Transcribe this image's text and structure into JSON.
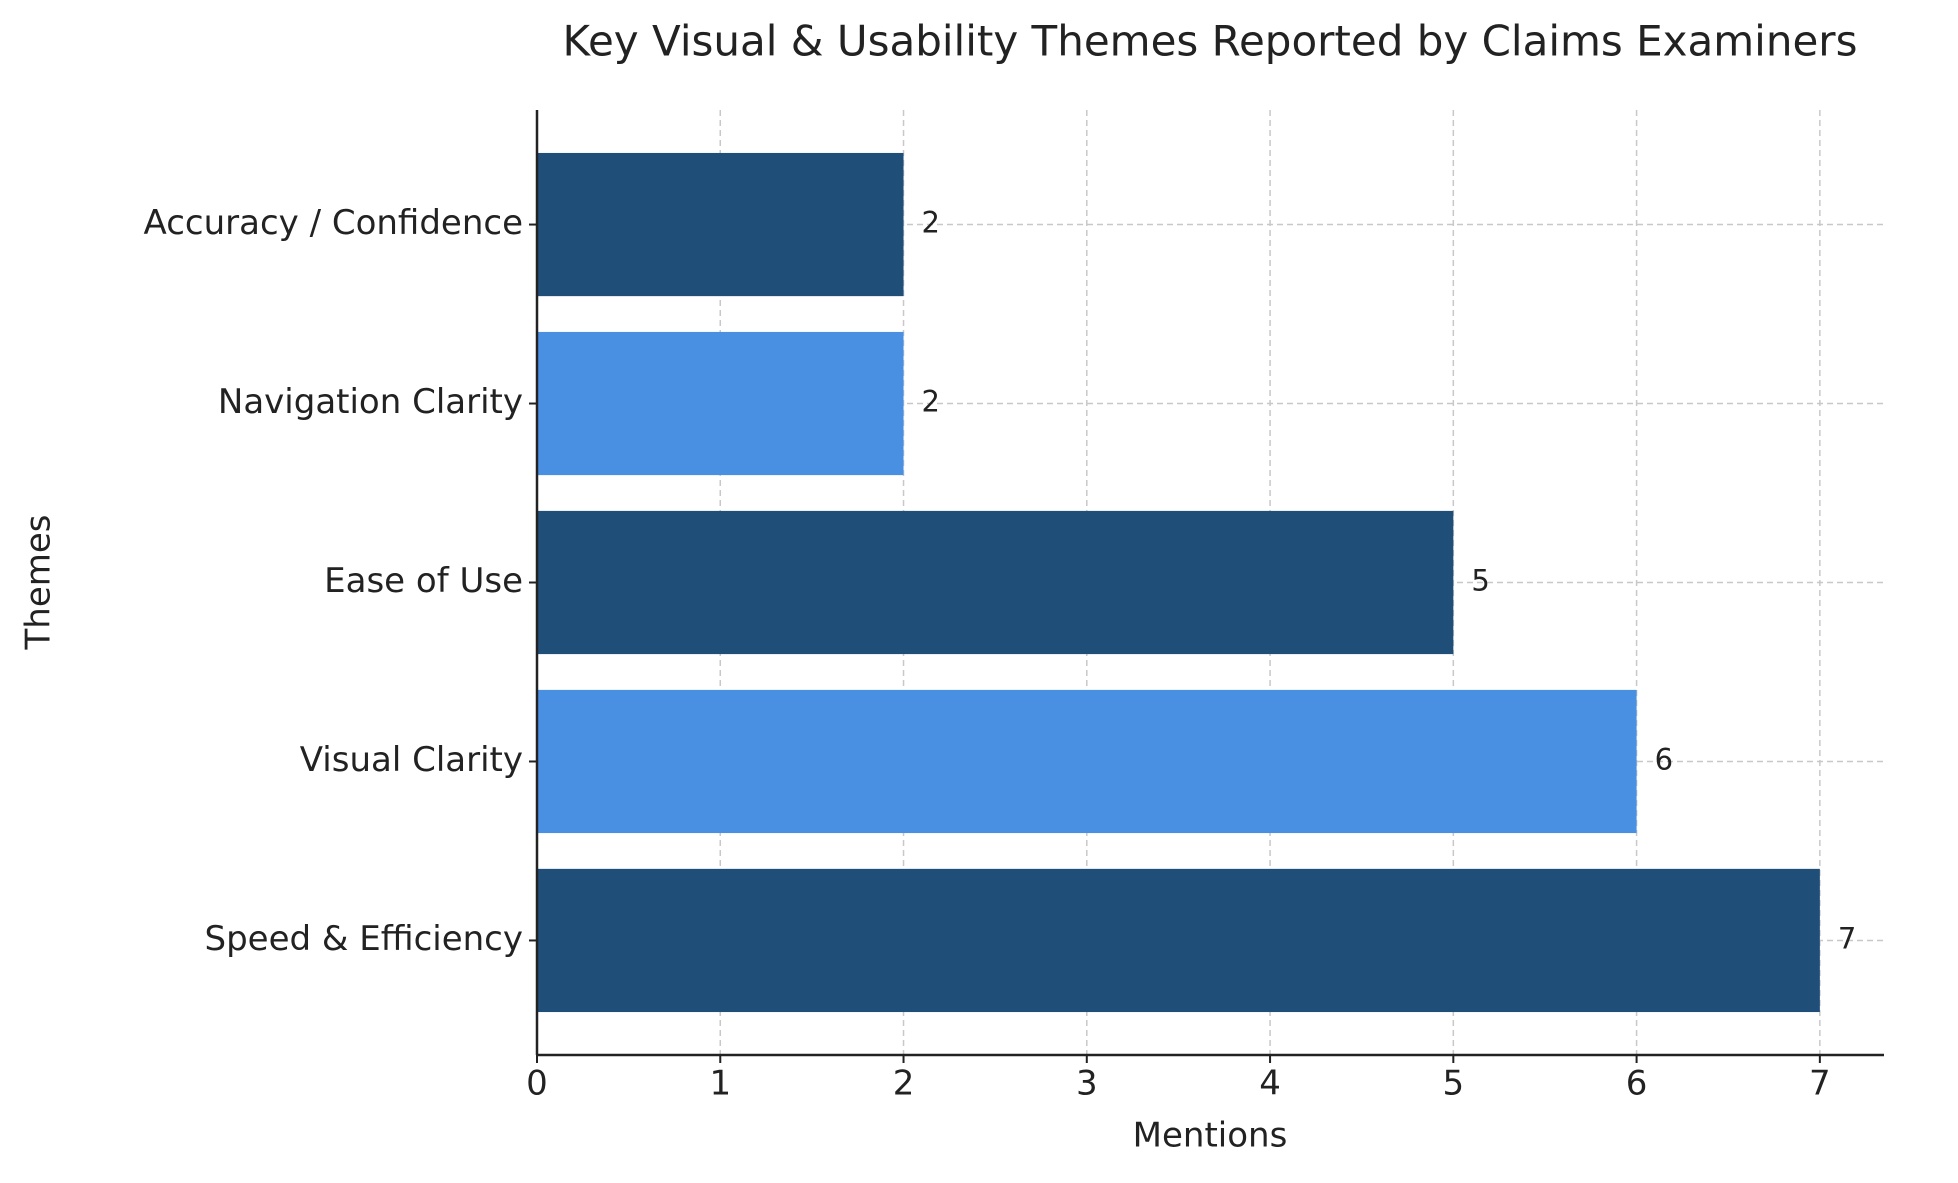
{
  "chart_data": {
    "type": "barh",
    "title": "Key Visual & Usability Themes Reported by Claims Examiners",
    "x_label": "Mentions",
    "y_label": "Themes",
    "categories": [
      "Speed & Efficiency",
      "Visual Clarity",
      "Ease of Use",
      "Navigation Clarity",
      "Accuracy / Confidence"
    ],
    "values": [
      7,
      6,
      5,
      2,
      2
    ],
    "colors": [
      "#1f4e79",
      "#4a90e2",
      "#1f4e79",
      "#4a90e2",
      "#1f4e79"
    ],
    "xlim": [
      0,
      7.35
    ],
    "xticks": [
      0,
      1,
      2,
      3,
      4,
      5,
      6,
      7
    ],
    "grid": true
  }
}
